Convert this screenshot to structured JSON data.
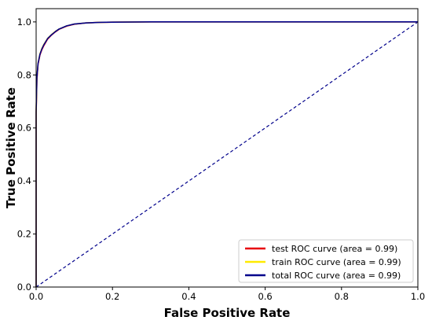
{
  "chart_data": {
    "type": "line",
    "xlabel": "False Positive Rate",
    "ylabel": "True Positive Rate",
    "xlim": [
      0.0,
      1.0
    ],
    "ylim": [
      0.0,
      1.05
    ],
    "x_ticks": [
      "0.0",
      "0.2",
      "0.4",
      "0.6",
      "0.8",
      "1.0"
    ],
    "y_ticks": [
      "0.0",
      "0.2",
      "0.4",
      "0.6",
      "0.8",
      "1.0"
    ],
    "x_tick_values": [
      0.0,
      0.2,
      0.4,
      0.6,
      0.8,
      1.0
    ],
    "y_tick_values": [
      0.0,
      0.2,
      0.4,
      0.6,
      0.8,
      1.0
    ],
    "grid": false,
    "legend_position": "lower-right",
    "series": [
      {
        "name": "test ROC curve (area = 0.99)",
        "color": "#e8000b",
        "x": [
          0.0,
          0.0,
          0.002,
          0.005,
          0.01,
          0.015,
          0.02,
          0.03,
          0.04,
          0.05,
          0.06,
          0.08,
          0.1,
          0.13,
          0.16,
          0.2,
          0.3,
          0.5,
          0.7,
          1.0
        ],
        "y": [
          0.0,
          0.65,
          0.78,
          0.84,
          0.875,
          0.895,
          0.91,
          0.935,
          0.95,
          0.962,
          0.972,
          0.984,
          0.991,
          0.996,
          0.998,
          0.999,
          1.0,
          1.0,
          1.0,
          1.0
        ]
      },
      {
        "name": "train ROC curve (area = 0.99)",
        "color": "#ffeb00",
        "x": [
          0.0,
          0.0,
          0.002,
          0.005,
          0.01,
          0.015,
          0.02,
          0.03,
          0.04,
          0.05,
          0.06,
          0.08,
          0.1,
          0.13,
          0.16,
          0.2,
          0.3,
          0.5,
          0.7,
          1.0
        ],
        "y": [
          0.0,
          0.66,
          0.79,
          0.845,
          0.88,
          0.9,
          0.915,
          0.938,
          0.952,
          0.964,
          0.973,
          0.985,
          0.992,
          0.996,
          0.998,
          0.999,
          1.0,
          1.0,
          1.0,
          1.0
        ]
      },
      {
        "name": "total ROC curve (area = 0.99)",
        "color": "#00008b",
        "x": [
          0.0,
          0.0,
          0.002,
          0.005,
          0.01,
          0.015,
          0.02,
          0.03,
          0.04,
          0.05,
          0.06,
          0.08,
          0.1,
          0.13,
          0.16,
          0.2,
          0.3,
          0.5,
          0.7,
          1.0
        ],
        "y": [
          0.0,
          0.66,
          0.79,
          0.843,
          0.878,
          0.898,
          0.913,
          0.937,
          0.951,
          0.963,
          0.973,
          0.985,
          0.992,
          0.996,
          0.998,
          0.999,
          1.0,
          1.0,
          1.0,
          1.0
        ]
      }
    ],
    "reference_line": {
      "x": [
        0.0,
        1.0
      ],
      "y": [
        0.0,
        1.0
      ],
      "color": "#00008b",
      "style": "dashed"
    }
  }
}
